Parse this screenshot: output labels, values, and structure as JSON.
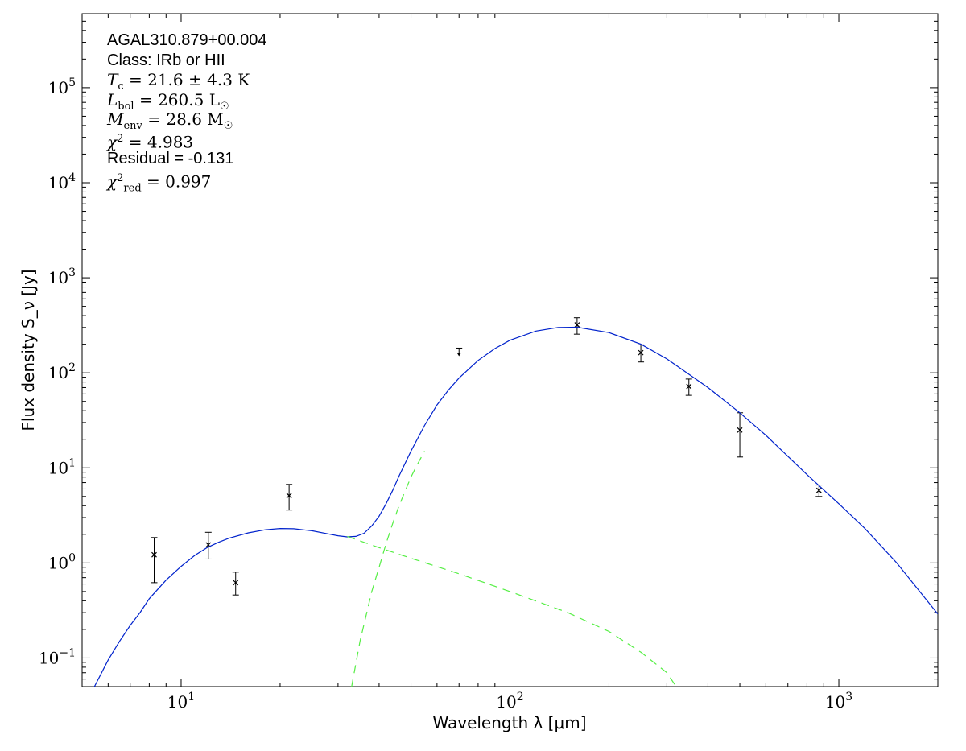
{
  "chart_data": {
    "type": "scatter",
    "title": "",
    "xlabel": "Wavelength λ [μm]",
    "ylabel": "Flux density S_ν [Jy]",
    "x_scale": "log",
    "y_scale": "log",
    "xlim": [
      5,
      2000
    ],
    "ylim": [
      0.05,
      600000
    ],
    "grid": false,
    "x_ticks": [
      {
        "value": 10,
        "base": "10",
        "exp": "1"
      },
      {
        "value": 100,
        "base": "10",
        "exp": "2"
      },
      {
        "value": 1000,
        "base": "10",
        "exp": "3"
      }
    ],
    "y_ticks": [
      {
        "value": 0.1,
        "base": "10",
        "exp": "−1"
      },
      {
        "value": 1,
        "base": "10",
        "exp": "0"
      },
      {
        "value": 10,
        "base": "10",
        "exp": "1"
      },
      {
        "value": 100,
        "base": "10",
        "exp": "2"
      },
      {
        "value": 1000,
        "base": "10",
        "exp": "3"
      },
      {
        "value": 10000,
        "base": "10",
        "exp": "4"
      },
      {
        "value": 100000,
        "base": "10",
        "exp": "5"
      }
    ],
    "annotation": {
      "source": "AGAL310.879+00.004",
      "class_text": "Class: IRb or HII",
      "tc": "21.6 ± 4.3 K",
      "lbol": "260.5 L",
      "menv": "28.6 M",
      "chi2": "4.983",
      "residual_text": "Residual = -0.131",
      "chi2_red": "0.997"
    },
    "series": [
      {
        "kind": "points",
        "color": "#000000",
        "points": [
          {
            "x": 8.28,
            "y": 1.22,
            "ylo": 0.62,
            "yhi": 1.85
          },
          {
            "x": 12.1,
            "y": 1.55,
            "ylo": 1.1,
            "yhi": 2.1
          },
          {
            "x": 14.65,
            "y": 0.62,
            "ylo": 0.46,
            "yhi": 0.8
          },
          {
            "x": 21.3,
            "y": 5.1,
            "ylo": 3.6,
            "yhi": 6.7
          },
          {
            "x": 160,
            "y": 320,
            "ylo": 255,
            "yhi": 380
          },
          {
            "x": 250,
            "y": 163,
            "ylo": 130,
            "yhi": 197
          },
          {
            "x": 350,
            "y": 72,
            "ylo": 58,
            "yhi": 86
          },
          {
            "x": 500,
            "y": 25,
            "ylo": 13,
            "yhi": 38
          },
          {
            "x": 870,
            "y": 5.8,
            "ylo": 5.0,
            "yhi": 6.6
          }
        ]
      },
      {
        "kind": "upper_limit",
        "color": "#000000",
        "points": [
          {
            "x": 70,
            "y": 182
          }
        ]
      },
      {
        "kind": "line",
        "style": "solid",
        "color": "#0022cc",
        "points": [
          [
            5.45,
            0.05
          ],
          [
            6,
            0.095
          ],
          [
            6.5,
            0.15
          ],
          [
            7,
            0.22
          ],
          [
            7.5,
            0.3
          ],
          [
            8,
            0.42
          ],
          [
            9,
            0.66
          ],
          [
            10,
            0.92
          ],
          [
            11,
            1.2
          ],
          [
            12,
            1.45
          ],
          [
            13,
            1.65
          ],
          [
            14,
            1.82
          ],
          [
            16,
            2.07
          ],
          [
            18,
            2.23
          ],
          [
            20,
            2.3
          ],
          [
            22,
            2.29
          ],
          [
            25,
            2.18
          ],
          [
            28,
            2.02
          ],
          [
            30,
            1.93
          ],
          [
            32,
            1.88
          ],
          [
            34,
            1.9
          ],
          [
            36,
            2.05
          ],
          [
            38,
            2.45
          ],
          [
            40,
            3.1
          ],
          [
            42,
            4.2
          ],
          [
            44,
            5.8
          ],
          [
            46,
            8.2
          ],
          [
            50,
            15
          ],
          [
            55,
            28
          ],
          [
            60,
            46
          ],
          [
            65,
            66
          ],
          [
            70,
            88
          ],
          [
            80,
            135
          ],
          [
            90,
            180
          ],
          [
            100,
            220
          ],
          [
            120,
            275
          ],
          [
            140,
            300
          ],
          [
            160,
            302
          ],
          [
            200,
            265
          ],
          [
            250,
            200
          ],
          [
            300,
            140
          ],
          [
            400,
            70
          ],
          [
            500,
            38
          ],
          [
            600,
            22
          ],
          [
            800,
            8.5
          ],
          [
            1000,
            4.2
          ],
          [
            1200,
            2.3
          ],
          [
            1500,
            1.0
          ],
          [
            2000,
            0.29
          ]
        ]
      },
      {
        "kind": "line",
        "style": "dashed",
        "color": "#55ee44",
        "points": [
          [
            32,
            1.9
          ],
          [
            40,
            1.45
          ],
          [
            50,
            1.12
          ],
          [
            70,
            0.77
          ],
          [
            100,
            0.5
          ],
          [
            150,
            0.3
          ],
          [
            200,
            0.19
          ],
          [
            250,
            0.115
          ],
          [
            300,
            0.07
          ],
          [
            320,
            0.05
          ]
        ]
      },
      {
        "kind": "line",
        "style": "dashed",
        "color": "#55ee44",
        "points": [
          [
            33,
            0.05
          ],
          [
            35,
            0.15
          ],
          [
            38,
            0.5
          ],
          [
            40,
            0.9
          ],
          [
            42,
            1.6
          ],
          [
            44,
            2.6
          ],
          [
            46,
            4.0
          ],
          [
            50,
            8.0
          ],
          [
            52,
            10.5
          ],
          [
            55,
            15
          ]
        ]
      }
    ]
  }
}
